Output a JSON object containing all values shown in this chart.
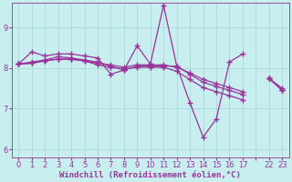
{
  "background_color": "#c8eef0",
  "line_color": "#993399",
  "grid_color": "#a0d8d0",
  "line_width": 0.9,
  "marker": "+",
  "markersize": 5,
  "markeredgewidth": 1.0,
  "xlabel": "Windchill (Refroidissement éolien,°C)",
  "xlabel_fontsize": 6.5,
  "tick_fontsize": 6,
  "ylim": [
    5.8,
    9.6
  ],
  "yticks": [
    6,
    7,
    8,
    9
  ],
  "xtick_labels": [
    "0",
    "1",
    "2",
    "3",
    "4",
    "5",
    "6",
    "7",
    "8",
    "9",
    "10",
    "11",
    "12",
    "13",
    "14",
    "15",
    "16",
    "17",
    "",
    "22",
    "23"
  ],
  "n_xticks": 21,
  "series": [
    [
      8.1,
      8.4,
      8.3,
      8.35,
      8.35,
      8.3,
      8.25,
      7.85,
      7.95,
      8.55,
      8.1,
      9.55,
      8.05,
      7.15,
      6.3,
      6.75,
      8.15,
      8.35,
      null,
      7.75,
      7.45
    ],
    [
      8.1,
      8.15,
      8.2,
      8.28,
      8.25,
      8.2,
      8.15,
      8.05,
      7.95,
      8.05,
      8.05,
      8.05,
      8.05,
      7.85,
      7.65,
      7.55,
      7.45,
      7.35,
      null,
      7.75,
      7.45
    ],
    [
      8.1,
      8.12,
      8.18,
      8.22,
      8.22,
      8.18,
      8.12,
      8.08,
      8.02,
      8.08,
      8.08,
      8.08,
      8.02,
      7.88,
      7.72,
      7.62,
      7.52,
      7.42,
      null,
      7.75,
      7.5
    ],
    [
      8.1,
      8.12,
      8.18,
      8.22,
      8.22,
      8.18,
      8.08,
      8.02,
      7.98,
      8.02,
      8.02,
      8.02,
      7.92,
      7.72,
      7.52,
      7.42,
      7.32,
      7.22,
      null,
      7.75,
      7.45
    ]
  ]
}
